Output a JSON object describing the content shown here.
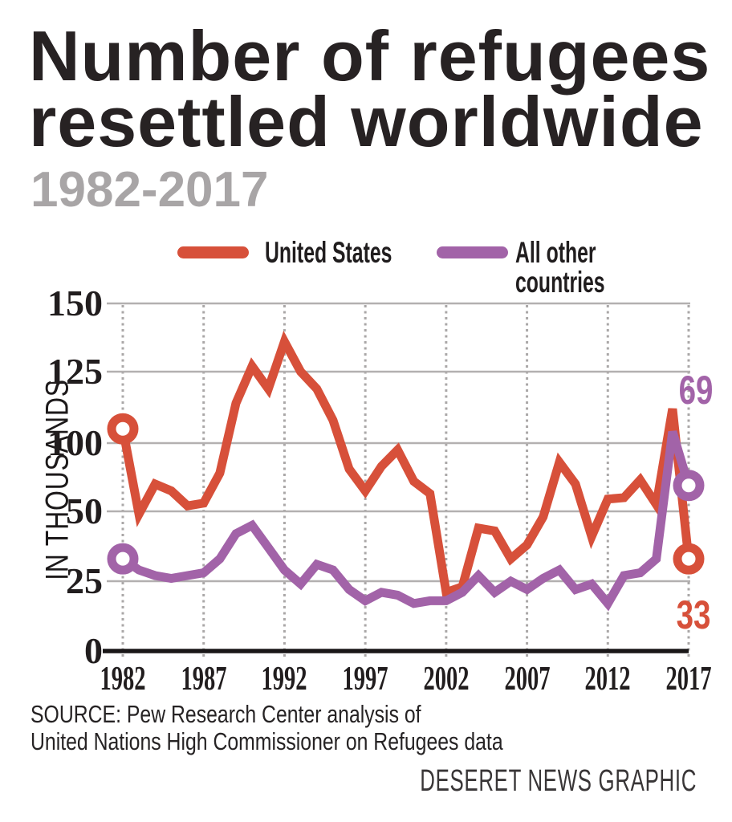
{
  "title": {
    "line1": "Number of refugees",
    "line2": "resettled worldwide"
  },
  "subtitle": "1982-2017",
  "legend": [
    {
      "label": "United States",
      "color": "#d7503a"
    },
    {
      "label": "All other countries",
      "color": "#a263a8"
    }
  ],
  "source": {
    "line1": "SOURCE: Pew Research Center analysis of",
    "line2": "United Nations High Commissioner on Refugees data"
  },
  "credit": "DESERET NEWS GRAPHIC",
  "chart_data": {
    "type": "line",
    "title": "Number of refugees resettled worldwide",
    "subtitle": "1982-2017",
    "ylabel": "IN THOUSANDS",
    "unit": "thousands",
    "x_range": [
      1982,
      2017
    ],
    "xticks": [
      1982,
      1987,
      1992,
      1997,
      2002,
      2007,
      2012,
      2017
    ],
    "ytick_labels": [
      "0",
      "25",
      "50",
      "100",
      "125",
      "150"
    ],
    "y_axis_note": "gridlines evenly spaced; no 75 line, 50-100 span compressed to one step",
    "grid": "horizontal solid, vertical dotted",
    "legend_position": "top",
    "years": [
      1982,
      1983,
      1984,
      1985,
      1986,
      1987,
      1988,
      1989,
      1990,
      1991,
      1992,
      1993,
      1994,
      1995,
      1996,
      1997,
      1998,
      1999,
      2000,
      2001,
      2002,
      2003,
      2004,
      2005,
      2006,
      2007,
      2008,
      2009,
      2010,
      2011,
      2012,
      2013,
      2014,
      2015,
      2016,
      2017
    ],
    "series": [
      {
        "name": "United States",
        "color": "#d7503a",
        "values": [
          105,
          49,
          70,
          65,
          54,
          56,
          78,
          114,
          127,
          119,
          136,
          125,
          119,
          108,
          81,
          65,
          83,
          95,
          72,
          63,
          21,
          23,
          44,
          43,
          33,
          38,
          48,
          86,
          70,
          41,
          59,
          60,
          73,
          55,
          112,
          33
        ]
      },
      {
        "name": "All other countries",
        "color": "#a263a8",
        "values": [
          33,
          29,
          27,
          26,
          27,
          28,
          33,
          42,
          45,
          37,
          29,
          24,
          31,
          29,
          22,
          18,
          21,
          20,
          17,
          18,
          18,
          21,
          27,
          21,
          25,
          22,
          26,
          29,
          22,
          24,
          17,
          27,
          28,
          33,
          104,
          69
        ]
      }
    ],
    "annotations": [
      {
        "text": "69",
        "series": "All other countries",
        "year": 2017,
        "color": "#a263a8"
      },
      {
        "text": "33",
        "series": "United States",
        "year": 2017,
        "color": "#d7503a"
      }
    ]
  }
}
